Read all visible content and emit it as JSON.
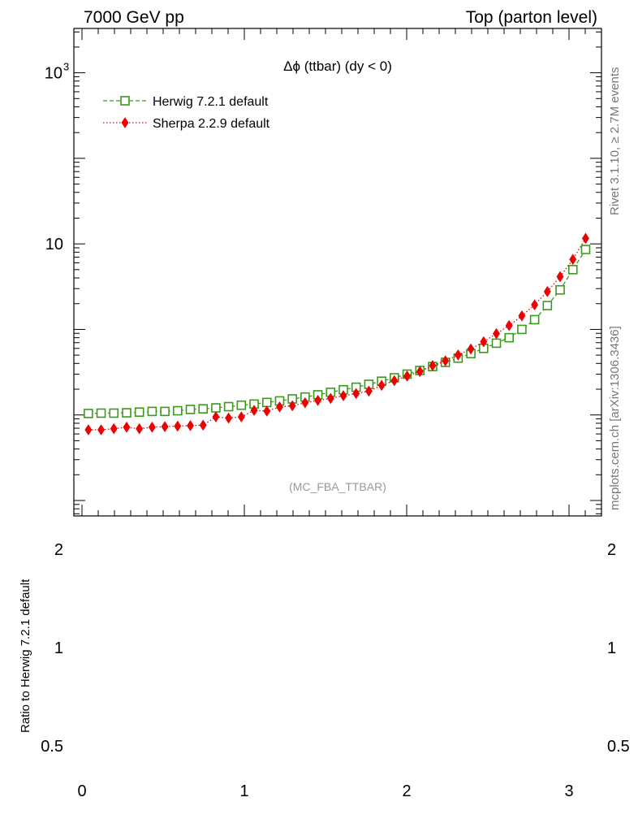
{
  "header": {
    "left": "7000 GeV pp",
    "right": "Top (parton level)"
  },
  "side_labels": {
    "rivet": "Rivet 3.1.10, ≥ 2.7M events",
    "mcplots": "mcplots.cern.ch [arXiv:1306.3436]"
  },
  "chart_data": {
    "type": "line",
    "title": "Δϕ (ttbar) (dy < 0)",
    "watermark": "(MC_FBA_TTBAR)",
    "xlim": [
      -0.05,
      3.2
    ],
    "ylim": [
      0.0066,
      3300
    ],
    "yscale": "log",
    "y_ticks": [
      {
        "value": 1000,
        "label": "10",
        "exponent": "3"
      },
      {
        "value": 10,
        "label": "10",
        "exponent": ""
      }
    ],
    "x_ticks": [
      {
        "value": 0,
        "label": "0"
      },
      {
        "value": 1,
        "label": "1"
      },
      {
        "value": 2,
        "label": "2"
      },
      {
        "value": 3,
        "label": "3"
      }
    ],
    "legend_position": "top-left",
    "series": [
      {
        "name": "Herwig 7.2.1 default",
        "color": "#3a9a1a",
        "marker": "open-square",
        "line": "dashed",
        "x": [
          0.0393,
          0.1178,
          0.1963,
          0.2749,
          0.3534,
          0.432,
          0.5105,
          0.589,
          0.6676,
          0.7461,
          0.8247,
          0.9032,
          0.9817,
          1.0603,
          1.1388,
          1.2174,
          1.2959,
          1.3744,
          1.453,
          1.5315,
          1.6101,
          1.6886,
          1.7671,
          1.8457,
          1.9242,
          2.0028,
          2.0813,
          2.1598,
          2.2384,
          2.3169,
          2.3955,
          2.474,
          2.5525,
          2.6311,
          2.7096,
          2.7882,
          2.8667,
          2.9452,
          3.0238,
          3.1023
        ],
        "y": [
          0.104,
          0.105,
          0.105,
          0.106,
          0.108,
          0.11,
          0.11,
          0.112,
          0.116,
          0.118,
          0.121,
          0.125,
          0.13,
          0.134,
          0.14,
          0.146,
          0.154,
          0.162,
          0.172,
          0.184,
          0.197,
          0.211,
          0.228,
          0.248,
          0.272,
          0.3,
          0.331,
          0.368,
          0.412,
          0.462,
          0.521,
          0.6,
          0.69,
          0.8,
          1.0,
          1.3,
          1.9,
          2.9,
          5.0,
          8.6
        ]
      },
      {
        "name": "Sherpa 2.2.9 default",
        "color": "#ee0000",
        "marker": "filled-diamond",
        "line": "dotted",
        "x": [
          0.0393,
          0.1178,
          0.1963,
          0.2749,
          0.3534,
          0.432,
          0.5105,
          0.589,
          0.6676,
          0.7461,
          0.8247,
          0.9032,
          0.9817,
          1.0603,
          1.1388,
          1.2174,
          1.2959,
          1.3744,
          1.453,
          1.5315,
          1.6101,
          1.6886,
          1.7671,
          1.8457,
          1.9242,
          2.0028,
          2.0813,
          2.1598,
          2.2384,
          2.3169,
          2.3955,
          2.474,
          2.5525,
          2.6311,
          2.7096,
          2.7882,
          2.8667,
          2.9452,
          3.0238,
          3.1023
        ],
        "y": [
          0.067,
          0.067,
          0.069,
          0.072,
          0.069,
          0.072,
          0.073,
          0.074,
          0.075,
          0.076,
          0.095,
          0.092,
          0.095,
          0.113,
          0.111,
          0.124,
          0.128,
          0.139,
          0.148,
          0.156,
          0.168,
          0.178,
          0.19,
          0.222,
          0.252,
          0.285,
          0.322,
          0.378,
          0.429,
          0.503,
          0.59,
          0.718,
          0.893,
          1.11,
          1.44,
          1.94,
          2.77,
          4.14,
          6.59,
          11.6
        ]
      }
    ]
  },
  "ratio_panel": {
    "ylabel": "Ratio to Herwig 7.2.1 default",
    "y_ticks": [
      {
        "value": 2,
        "label": "2"
      },
      {
        "value": 1,
        "label": "1"
      },
      {
        "value": 0.5,
        "label": "0.5"
      }
    ],
    "x_ticks": [
      {
        "value": 0,
        "label": "0"
      },
      {
        "value": 1,
        "label": "1"
      },
      {
        "value": 2,
        "label": "2"
      },
      {
        "value": 3,
        "label": "3"
      }
    ]
  }
}
